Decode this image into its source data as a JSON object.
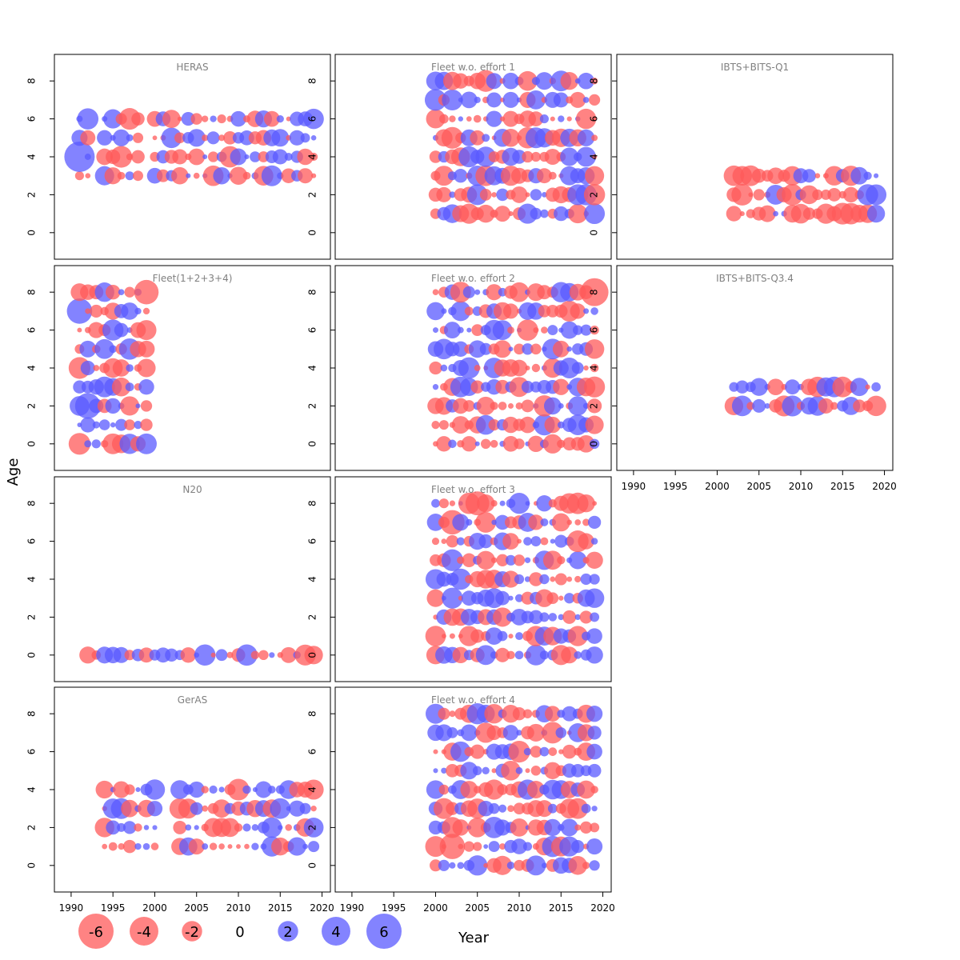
{
  "chart_data": {
    "type": "scatter",
    "description_style": "bubble residual plot per survey/fleet",
    "xlabel": "Year",
    "ylabel": "Age",
    "xlim": [
      1988,
      2021
    ],
    "ylim": [
      -1.4,
      9.4
    ],
    "x_ticks": [
      1990,
      1995,
      2000,
      2005,
      2010,
      2015,
      2020
    ],
    "y_ticks": [
      0,
      2,
      4,
      6,
      8
    ],
    "colors": {
      "negative": "#ff5a5a",
      "positive": "#5a5aff",
      "opacity": 0.75
    },
    "legend": {
      "values": [
        -6,
        -4,
        -2,
        0,
        2,
        4,
        6
      ],
      "labels": [
        "-6",
        "-4",
        "-2",
        "0",
        "2",
        "4",
        "6"
      ]
    },
    "panels": [
      {
        "id": "heras",
        "title": "HERAS",
        "col": 0,
        "row": 0,
        "ages": [
          3,
          4,
          5,
          6
        ],
        "years": [
          1991,
          2019
        ],
        "gaps": [
          1993,
          1999
        ],
        "seed": 11,
        "special": [
          {
            "age": 4,
            "year": 1991,
            "value": 6.5
          }
        ]
      },
      {
        "id": "fleet-1",
        "title": "Fleet w.o. effort 1",
        "col": 1,
        "row": 0,
        "ages": [
          1,
          2,
          3,
          4,
          5,
          6,
          7,
          8
        ],
        "years": [
          2000,
          2019
        ],
        "gaps": [],
        "seed": 23,
        "special": []
      },
      {
        "id": "ibts-q1",
        "title": "IBTS+BITS-Q1",
        "col": 2,
        "row": 0,
        "ages": [
          1,
          2,
          3
        ],
        "years": [
          2002,
          2019
        ],
        "gaps": [],
        "seed": 37,
        "special": []
      },
      {
        "id": "fleet-1234",
        "title": "Fleet(1+2+3+4)",
        "col": 0,
        "row": 1,
        "ages": [
          0,
          1,
          2,
          3,
          4,
          5,
          6,
          7,
          8
        ],
        "years": [
          1991,
          1999
        ],
        "gaps": [],
        "seed": 41,
        "special": [
          {
            "age": 8,
            "year": 1999,
            "value": -4.2
          },
          {
            "age": 7,
            "year": 1991,
            "value": 4.5
          },
          {
            "age": 2,
            "year": 1992,
            "value": 4.6
          }
        ]
      },
      {
        "id": "fleet-2",
        "title": "Fleet w.o. effort 2",
        "col": 1,
        "row": 1,
        "ages": [
          0,
          1,
          2,
          3,
          4,
          5,
          6,
          7,
          8
        ],
        "years": [
          2000,
          2019
        ],
        "gaps": [],
        "seed": 53,
        "special": [
          {
            "age": 8,
            "year": 2019,
            "value": -5.5
          }
        ]
      },
      {
        "id": "ibts-q34",
        "title": "IBTS+BITS-Q3.4",
        "col": 2,
        "row": 1,
        "ages": [
          2,
          3
        ],
        "years": [
          2002,
          2019
        ],
        "gaps": [],
        "seed": 61,
        "special": []
      },
      {
        "id": "n20",
        "title": "N20",
        "col": 0,
        "row": 2,
        "ages": [
          0
        ],
        "years": [
          1992,
          2019
        ],
        "gaps": [],
        "seed": 71,
        "special": []
      },
      {
        "id": "fleet-3",
        "title": "Fleet w.o. effort 3",
        "col": 1,
        "row": 2,
        "ages": [
          0,
          1,
          2,
          3,
          4,
          5,
          6,
          7,
          8
        ],
        "years": [
          2000,
          2019
        ],
        "gaps": [],
        "seed": 83,
        "special": [
          {
            "age": 8,
            "year": 2005,
            "value": -4.0
          },
          {
            "age": 7,
            "year": 2002,
            "value": -4.2
          }
        ]
      },
      {
        "id": "geras",
        "title": "GerAS",
        "col": 0,
        "row": 3,
        "ages": [
          1,
          2,
          3,
          4
        ],
        "years": [
          1994,
          2019
        ],
        "gaps": [
          2001,
          2002
        ],
        "seed": 97,
        "special": []
      },
      {
        "id": "fleet-4",
        "title": "Fleet w.o. effort 4",
        "col": 1,
        "row": 3,
        "ages": [
          0,
          1,
          2,
          3,
          4,
          5,
          6,
          7,
          8
        ],
        "years": [
          2000,
          2019
        ],
        "gaps": [],
        "seed": 101,
        "special": [
          {
            "age": 1,
            "year": 2002,
            "value": -4.5
          }
        ]
      }
    ]
  }
}
